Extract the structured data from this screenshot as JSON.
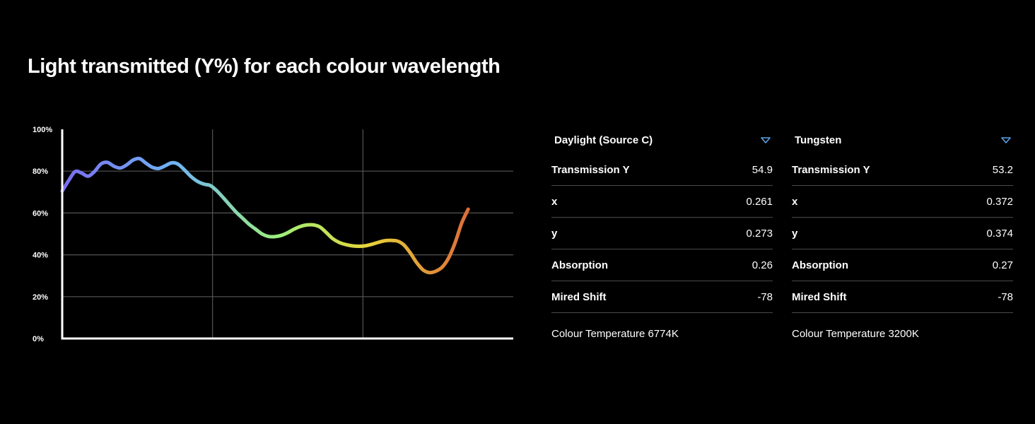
{
  "title": "Light transmitted (Y%) for each colour wavelength",
  "chart_data": {
    "type": "line",
    "title": "Light transmitted (Y%) for each colour wavelength",
    "xlabel": "",
    "ylabel": "",
    "ylim": [
      0,
      100
    ],
    "y_ticks": [
      0,
      20,
      40,
      60,
      80,
      100
    ],
    "y_tick_labels": [
      "0%",
      "20%",
      "40%",
      "60%",
      "80%",
      "100%"
    ],
    "x_index_range": [
      0,
      70
    ],
    "grid": true,
    "series": [
      {
        "values": [
          70.5,
          75.5,
          79.8,
          79.1,
          77.6,
          79.8,
          83.4,
          84.2,
          82.4,
          81.5,
          83.0,
          85.3,
          86.0,
          83.8,
          81.8,
          81.3,
          82.6,
          84.0,
          83.3,
          80.5,
          77.4,
          75.1,
          73.8,
          73.1,
          70.6,
          67.3,
          63.8,
          60.4,
          57.5,
          54.6,
          52.3,
          50.0,
          48.8,
          48.7,
          49.3,
          50.6,
          52.3,
          53.6,
          54.3,
          54.3,
          53.3,
          50.6,
          47.7,
          45.9,
          44.9,
          44.3,
          44.1,
          44.3,
          45.0,
          45.9,
          46.7,
          46.9,
          46.6,
          44.8,
          41.0,
          36.3,
          32.8,
          31.5,
          32.2,
          34.2,
          38.7,
          46.0,
          55.2,
          61.8
        ]
      }
    ]
  },
  "panels": [
    {
      "name": "Daylight (Source C)",
      "icon": "dropdown-triangle-icon",
      "rows": [
        {
          "label": "Transmission Y",
          "value": "54.9"
        },
        {
          "label": "x",
          "value": "0.261"
        },
        {
          "label": "y",
          "value": "0.273"
        },
        {
          "label": "Absorption",
          "value": "0.26"
        },
        {
          "label": "Mired Shift",
          "value": "-78"
        }
      ],
      "colour_temperature": "Colour Temperature 6774K"
    },
    {
      "name": "Tungsten",
      "icon": "dropdown-triangle-icon",
      "rows": [
        {
          "label": "Transmission Y",
          "value": "53.2"
        },
        {
          "label": "x",
          "value": "0.372"
        },
        {
          "label": "y",
          "value": "0.374"
        },
        {
          "label": "Absorption",
          "value": "0.27"
        },
        {
          "label": "Mired Shift",
          "value": "-78"
        }
      ],
      "colour_temperature": "Colour Temperature 3200K"
    }
  ],
  "colors": {
    "background": "#000000",
    "text": "#ffffff",
    "grid": "#555555",
    "divider": "#4a4a4a",
    "dropdown_icon": "#5aa0e6",
    "spectrum_start": "#7a6cf0",
    "spectrum_blue": "#6fb4f5",
    "spectrum_green": "#9df07a",
    "spectrum_yellow": "#e6d43a",
    "spectrum_orange": "#de7a3a",
    "spectrum_red": "#d44a3a"
  }
}
